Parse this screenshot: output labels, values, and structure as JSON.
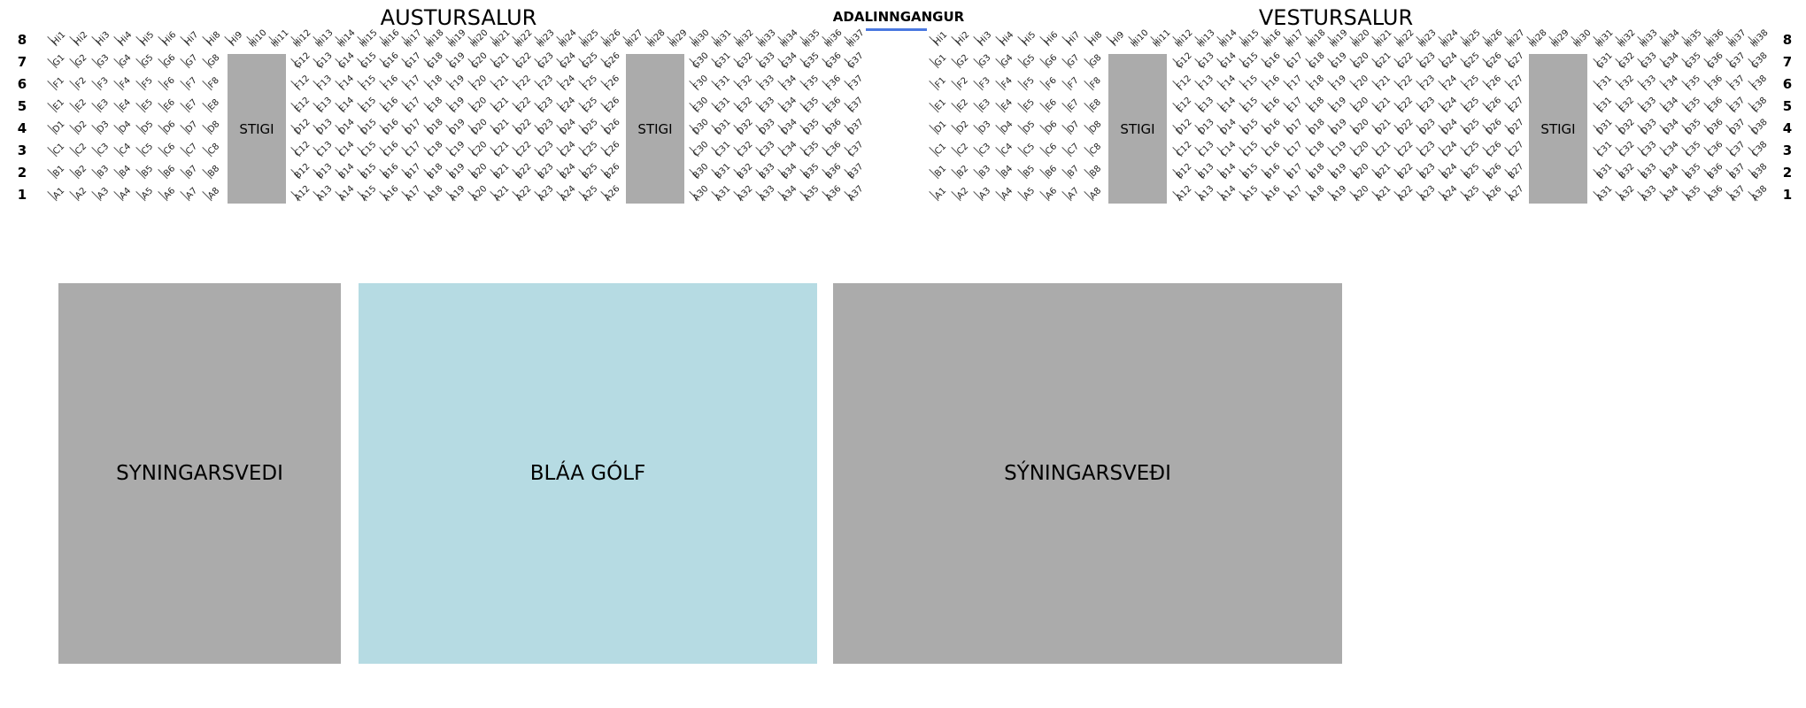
{
  "halls": [
    {
      "title": "AUSTURSALUR",
      "top_row_label": "Hi",
      "top_row_seats": [
        1,
        37
      ],
      "row_letters": [
        "G",
        "F",
        "E",
        "D",
        "C",
        "B",
        "A"
      ],
      "row_seat_ranges": [
        [
          1,
          8
        ],
        [
          12,
          26
        ],
        [
          30,
          37
        ]
      ],
      "stairs": [
        "STIGI",
        "STIGI"
      ]
    },
    {
      "title": "VESTURSALUR",
      "top_row_label": "Hi",
      "top_row_seats": [
        1,
        38
      ],
      "row_letters": [
        "G",
        "F",
        "E",
        "D",
        "C",
        "B",
        "A"
      ],
      "row_seat_ranges": [
        [
          1,
          8
        ],
        [
          12,
          27
        ],
        [
          31,
          38
        ]
      ],
      "stairs": [
        "STIGI",
        "STIGI"
      ]
    }
  ],
  "entrance": {
    "label": "ADALINNGANGUR",
    "color": "#4a78e0"
  },
  "row_numbers": [
    "8",
    "7",
    "6",
    "5",
    "4",
    "3",
    "2",
    "1"
  ],
  "zones": [
    {
      "label": "SYNINGARSVEDI",
      "color": "#ababab"
    },
    {
      "label": "BLÁA GÓLF",
      "color": "#b6dbe3"
    },
    {
      "label": "SÝNINGARSVEÐI",
      "color": "#ababab"
    }
  ]
}
